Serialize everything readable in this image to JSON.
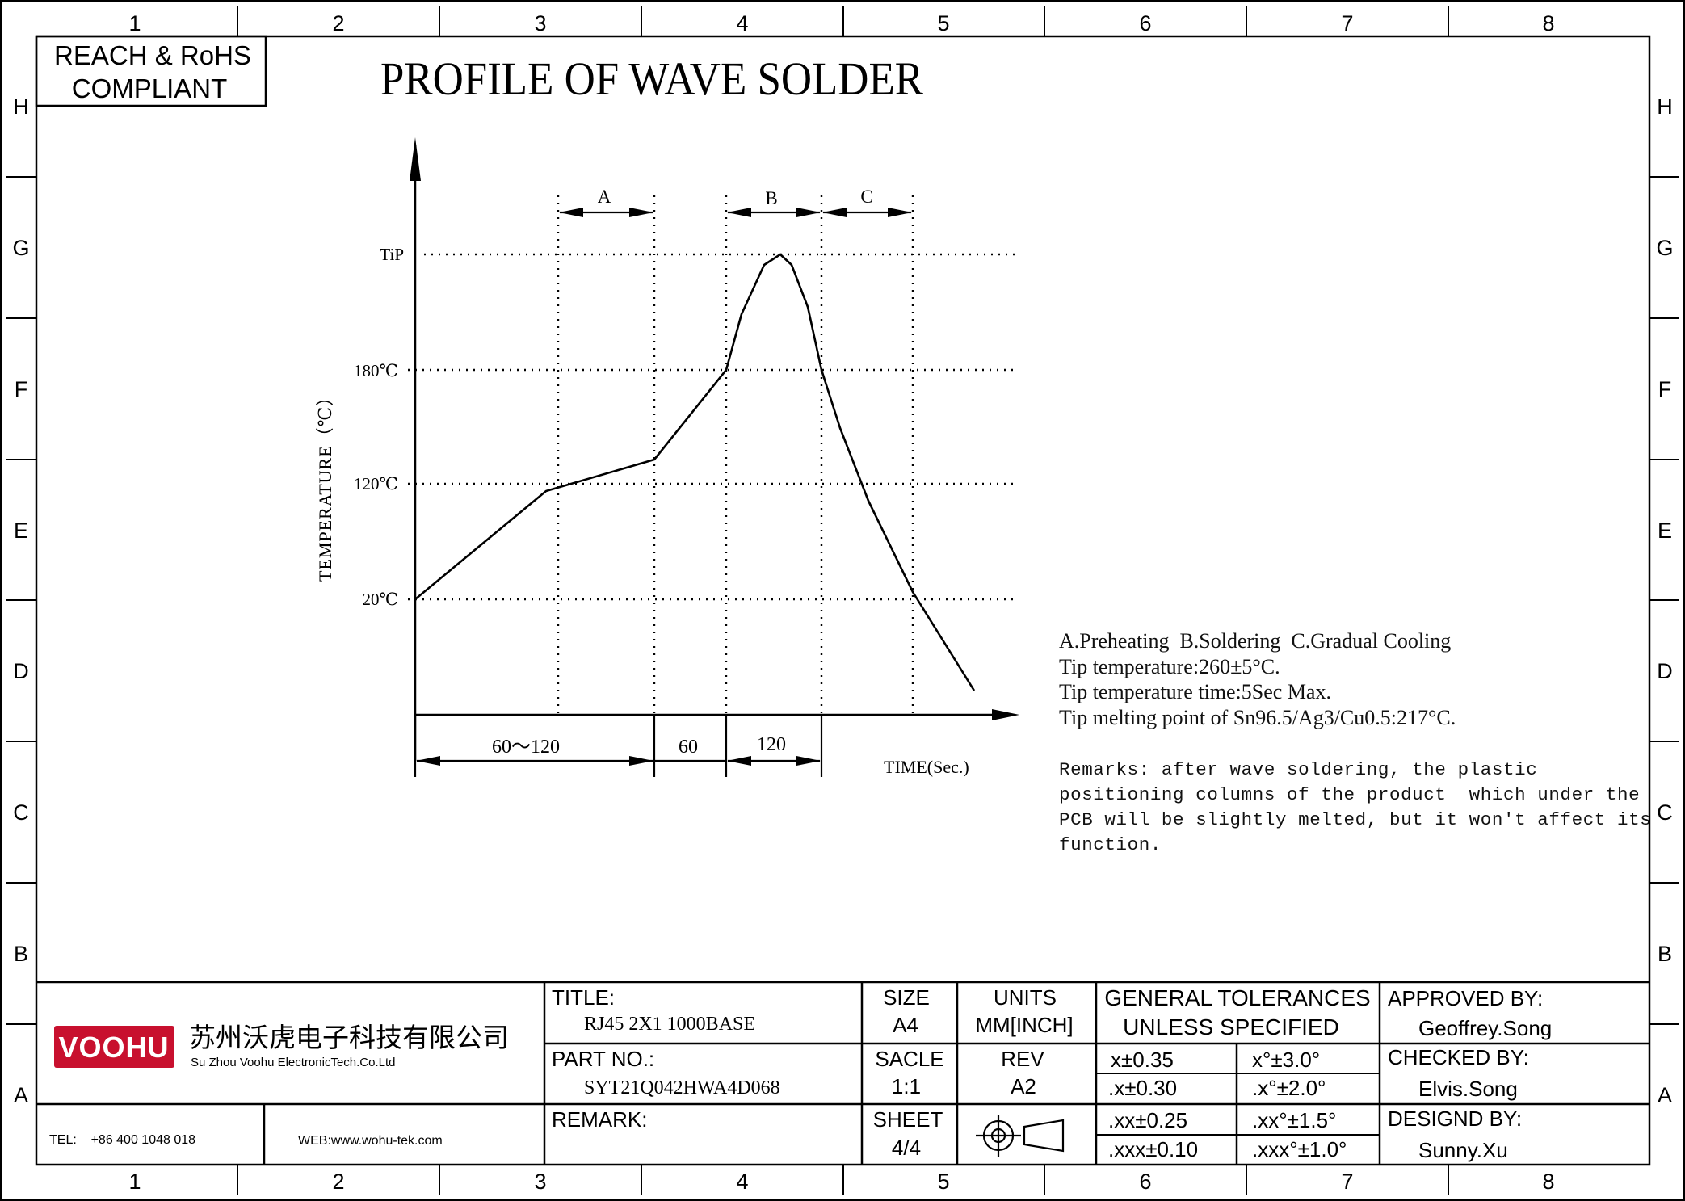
{
  "border": {
    "columns": [
      "1",
      "2",
      "3",
      "4",
      "5",
      "6",
      "7",
      "8"
    ],
    "rows": [
      "H",
      "G",
      "F",
      "E",
      "D",
      "C",
      "B",
      "A"
    ]
  },
  "compliance": {
    "line1": "REACH & RoHS",
    "line2": "COMPLIANT"
  },
  "drawing_title": "PROFILE OF WAVE SOLDER",
  "chart_data": {
    "type": "line",
    "title": "PROFILE OF WAVE SOLDER",
    "xlabel": "TIME(Sec.)",
    "ylabel": "TEMPERATURE（℃）",
    "y_levels": [
      {
        "label": "TiP",
        "value": 260
      },
      {
        "label": "180℃",
        "value": 180
      },
      {
        "label": "120℃",
        "value": 120
      },
      {
        "label": "20℃",
        "value": 20
      }
    ],
    "zones": [
      {
        "label": "A",
        "name": "Preheating"
      },
      {
        "label": "B",
        "name": "Soldering"
      },
      {
        "label": "C",
        "name": "Gradual Cooling"
      }
    ],
    "time_spans": [
      "60～120",
      "60",
      "120"
    ],
    "grid": "dotted"
  },
  "notes": {
    "legend_line": "A.Preheating  B.Soldering  C.Gradual Cooling",
    "tip_temp": "Tip temperature:260±5°C.",
    "tip_time": "Tip temperature time:5Sec Max.",
    "melting_point": "Tip melting point of Sn96.5/Ag3/Cu0.5:217°C."
  },
  "remarks": {
    "line1": "Remarks: after wave soldering, the plastic",
    "line2": "positioning columns of the product  which under the",
    "line3": "PCB will be slightly melted, but it won't affect its",
    "line4": "function."
  },
  "title_block": {
    "company_logo": "VOOHU",
    "company_cn": "苏州沃虎电子科技有限公司",
    "company_en": "Su Zhou  Voohu  ElectronicTech.Co.Ltd",
    "tel": "TEL:    +86 400 1048 018",
    "web": "WEB:www.wohu-tek.com",
    "title_label": "TITLE:",
    "title_value": "RJ45 2X1 1000BASE",
    "part_label": "PART NO.:",
    "part_value": "SYT21Q042HWA4D068",
    "remark_label": "REMARK:",
    "size_label": "SIZE",
    "size_value": "A4",
    "scale_label": "SACLE",
    "scale_value": "1:1",
    "sheet_label": "SHEET",
    "sheet_value": "4/4",
    "units_label": "UNITS",
    "units_value": "MM[INCH]",
    "rev_label": "REV",
    "rev_value": "A2",
    "projection_icon": "third-angle-projection-icon",
    "tolerances_title1": "GENERAL TOLERANCES",
    "tolerances_title2": "UNLESS SPECIFIED",
    "tolerances": [
      {
        "linear": "x±0.35",
        "angular": "x°±3.0°"
      },
      {
        "linear": ".x±0.30",
        "angular": ".x°±2.0°"
      },
      {
        "linear": ".xx±0.25",
        "angular": ".xx°±1.5°"
      },
      {
        "linear": ".xxx±0.10",
        "angular": ".xxx°±1.0°"
      }
    ],
    "approved_label": "APPROVED BY:",
    "approved_value": "Geoffrey.Song",
    "checked_label": "CHECKED BY:",
    "checked_value": "Elvis.Song",
    "designed_label": "DESIGND BY:",
    "designed_value": "Sunny.Xu"
  },
  "colors": {
    "ink": "#000000",
    "logo_red": "#c8102e"
  }
}
